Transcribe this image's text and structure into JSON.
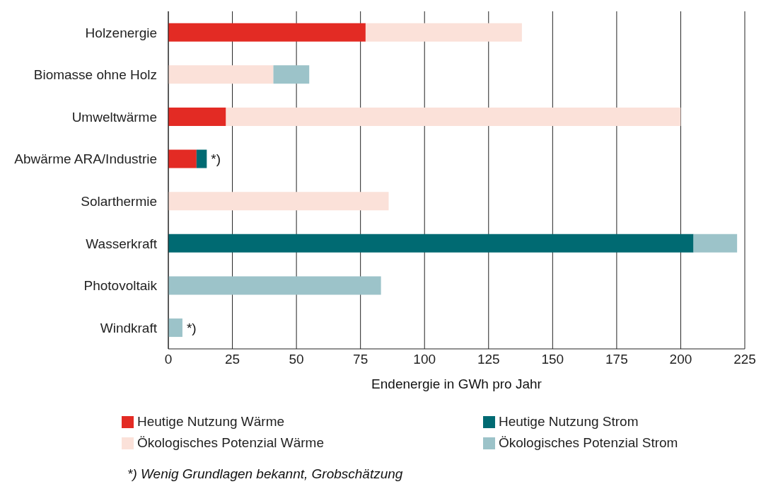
{
  "chart_data": {
    "type": "bar",
    "orientation": "horizontal",
    "stacked": true,
    "xlabel": "Endenergie in GWh pro Jahr",
    "categories": [
      "Holzenergie",
      "Biomasse ohne Holz",
      "Umweltwärme",
      "Abwärme ARA/Industrie",
      "Solarthermie",
      "Wasserkraft",
      "Photovoltaik",
      "Windkraft"
    ],
    "series": [
      {
        "name": "Heutige Nutzung Wärme",
        "color": "#e32b24",
        "values": [
          77,
          null,
          22.5,
          11,
          null,
          null,
          null,
          null
        ]
      },
      {
        "name": "Heutige Nutzung Strom",
        "color": "#006a72",
        "values": [
          null,
          null,
          null,
          4,
          null,
          205,
          null,
          null
        ]
      },
      {
        "name": "Ökologisches Potenzial Wärme",
        "color": "#fbe1d9",
        "values": [
          61,
          41,
          177.5,
          null,
          86,
          null,
          null,
          null
        ]
      },
      {
        "name": "Ökologisches Potenzial Strom",
        "color": "#9cc3c9",
        "values": [
          null,
          14,
          null,
          null,
          null,
          17,
          83,
          5.5
        ]
      }
    ],
    "xlim": [
      0,
      225
    ],
    "xticks": [
      0,
      25,
      50,
      75,
      100,
      125,
      150,
      175,
      200,
      225
    ],
    "grid": "x",
    "legend": "bottom",
    "annotations": [
      {
        "text": "*)",
        "x": 15,
        "y": "Abwärme ARA/Industrie"
      },
      {
        "text": "*)",
        "x": 5.5,
        "y": "Windkraft"
      },
      "*) Wenig Grundlagen bekannt, Grobschätzung"
    ]
  }
}
